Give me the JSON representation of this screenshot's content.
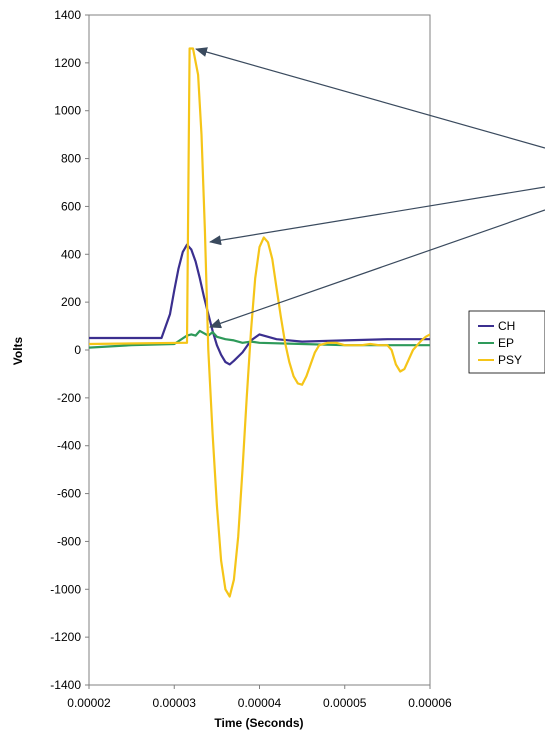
{
  "chart_data": {
    "type": "line",
    "title": "",
    "xlabel": "Time (Seconds)",
    "ylabel": "Volts",
    "xlim": [
      2e-05,
      6e-05
    ],
    "ylim": [
      -1400,
      1400
    ],
    "xticks": [
      "0.00002",
      "0.00003",
      "0.00004",
      "0.00005",
      "0.00006"
    ],
    "yticks": [
      "1400",
      "1200",
      "1000",
      "800",
      "600",
      "400",
      "200",
      "0",
      "-200",
      "-400",
      "-600",
      "-800",
      "-1000",
      "-1200",
      "-1400"
    ],
    "grid": false,
    "legend_position": "right",
    "series": [
      {
        "name": "CH",
        "color": "#3b2f8f",
        "x": [
          2e-05,
          2.85e-05,
          2.95e-05,
          3e-05,
          3.05e-05,
          3.1e-05,
          3.15e-05,
          3.2e-05,
          3.25e-05,
          3.3e-05,
          3.35e-05,
          3.4e-05,
          3.45e-05,
          3.5e-05,
          3.55e-05,
          3.6e-05,
          3.65e-05,
          3.7e-05,
          3.8e-05,
          3.9e-05,
          4e-05,
          4.1e-05,
          4.2e-05,
          4.5e-05,
          5e-05,
          5.5e-05,
          6e-05
        ],
        "values": [
          50,
          50,
          150,
          250,
          340,
          410,
          440,
          420,
          370,
          300,
          220,
          150,
          80,
          20,
          -20,
          -50,
          -60,
          -45,
          -10,
          40,
          65,
          55,
          45,
          35,
          40,
          45,
          45
        ]
      },
      {
        "name": "EP",
        "color": "#2e9a5a",
        "x": [
          2e-05,
          2.5e-05,
          3e-05,
          3.15e-05,
          3.2e-05,
          3.25e-05,
          3.3e-05,
          3.35e-05,
          3.4e-05,
          3.45e-05,
          3.5e-05,
          3.6e-05,
          3.7e-05,
          3.8e-05,
          3.9e-05,
          4e-05,
          4.5e-05,
          5e-05,
          5.5e-05,
          6e-05
        ],
        "values": [
          10,
          20,
          25,
          60,
          65,
          60,
          80,
          70,
          60,
          75,
          55,
          45,
          40,
          30,
          35,
          30,
          25,
          20,
          20,
          20
        ]
      },
      {
        "name": "PSY",
        "color": "#f5c518",
        "x": [
          2e-05,
          3.1e-05,
          3.15e-05,
          3.18e-05,
          3.22e-05,
          3.28e-05,
          3.32e-05,
          3.36e-05,
          3.4e-05,
          3.45e-05,
          3.5e-05,
          3.55e-05,
          3.6e-05,
          3.65e-05,
          3.7e-05,
          3.75e-05,
          3.8e-05,
          3.85e-05,
          3.9e-05,
          3.95e-05,
          4e-05,
          4.05e-05,
          4.1e-05,
          4.15e-05,
          4.2e-05,
          4.25e-05,
          4.3e-05,
          4.35e-05,
          4.4e-05,
          4.45e-05,
          4.5e-05,
          4.55e-05,
          4.6e-05,
          4.65e-05,
          4.7e-05,
          4.8e-05,
          4.9e-05,
          5e-05,
          5.1e-05,
          5.2e-05,
          5.3e-05,
          5.4e-05,
          5.5e-05,
          5.55e-05,
          5.6e-05,
          5.65e-05,
          5.7e-05,
          5.75e-05,
          5.8e-05,
          5.85e-05,
          5.9e-05,
          5.95e-05,
          6e-05
        ],
        "values": [
          25,
          30,
          30,
          1260,
          1260,
          1150,
          900,
          500,
          0,
          -350,
          -650,
          -880,
          -1000,
          -1030,
          -960,
          -780,
          -500,
          -200,
          80,
          300,
          430,
          470,
          450,
          380,
          260,
          140,
          30,
          -50,
          -110,
          -140,
          -145,
          -110,
          -60,
          -10,
          20,
          30,
          30,
          20,
          20,
          20,
          25,
          20,
          20,
          0,
          -60,
          -90,
          -80,
          -40,
          0,
          20,
          40,
          55,
          65
        ]
      }
    ]
  }
}
